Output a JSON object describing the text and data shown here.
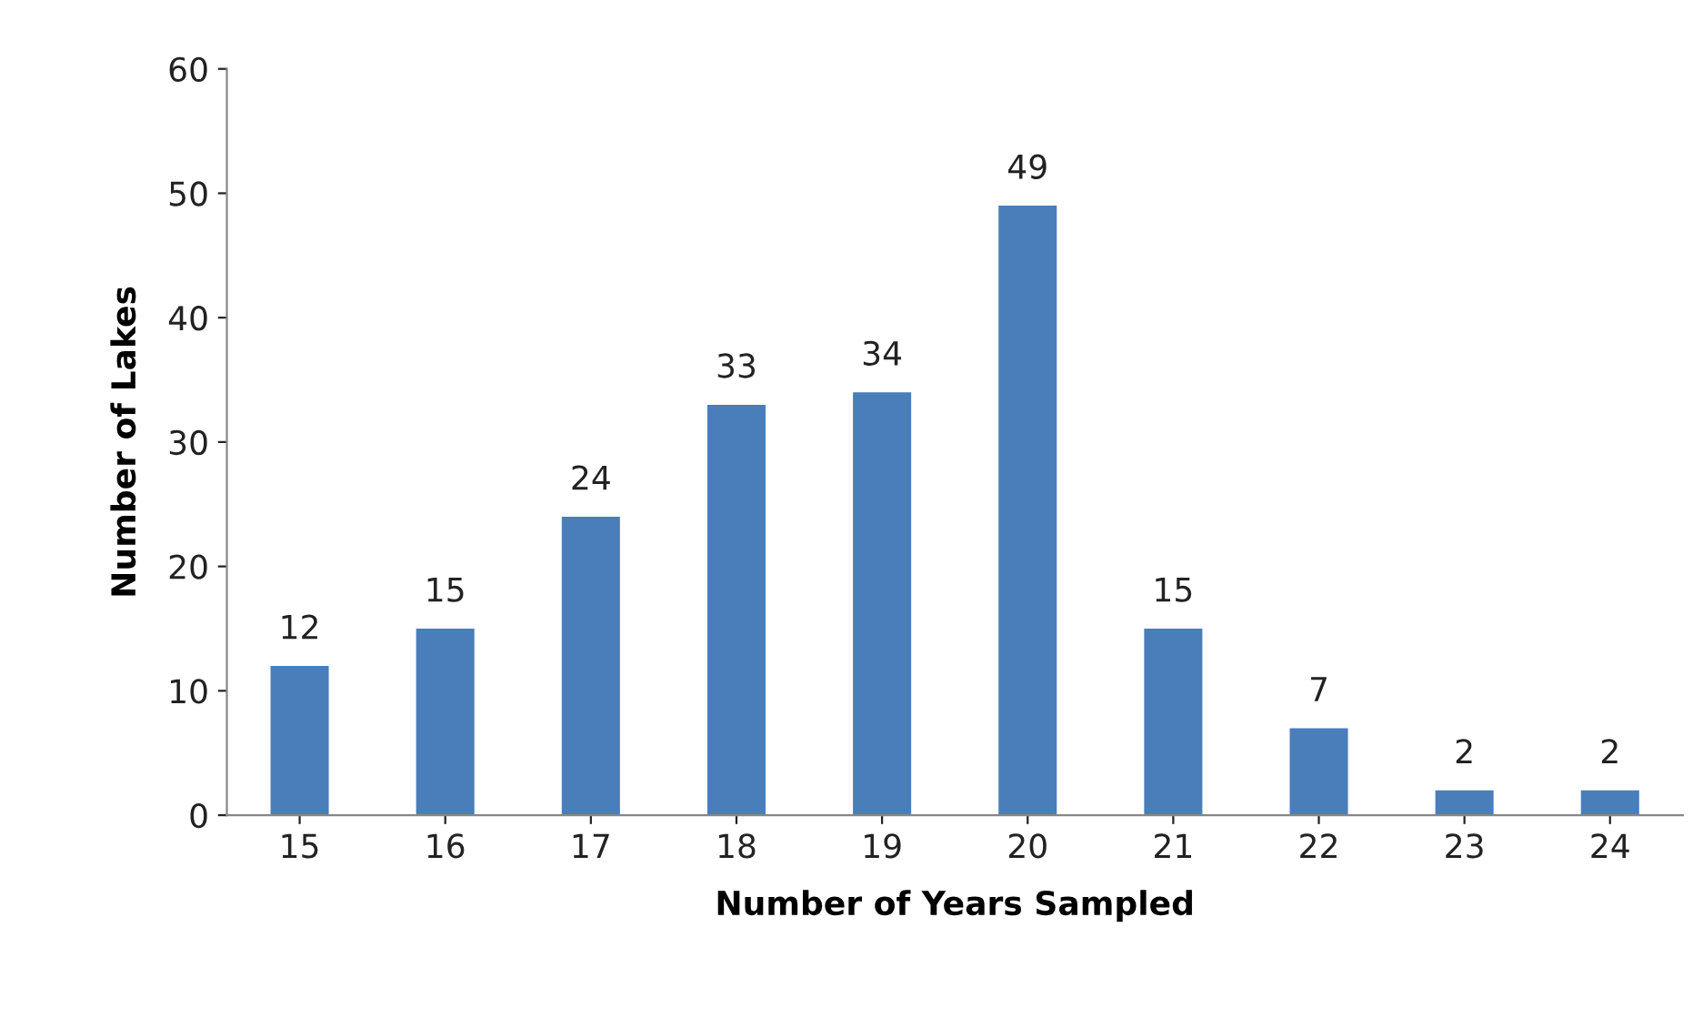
{
  "chart_data": {
    "type": "bar",
    "xlabel": "Number of Years Sampled",
    "ylabel": "Number of Lakes",
    "categories": [
      "15",
      "16",
      "17",
      "18",
      "19",
      "20",
      "21",
      "22",
      "23",
      "24"
    ],
    "values": [
      12,
      15,
      24,
      33,
      34,
      49,
      15,
      7,
      2,
      2
    ],
    "color": "#4a7ebb",
    "ylim": [
      0,
      60
    ],
    "yticks": [
      0,
      10,
      20,
      30,
      40,
      50,
      60
    ],
    "grid": false,
    "data_labels": true
  }
}
